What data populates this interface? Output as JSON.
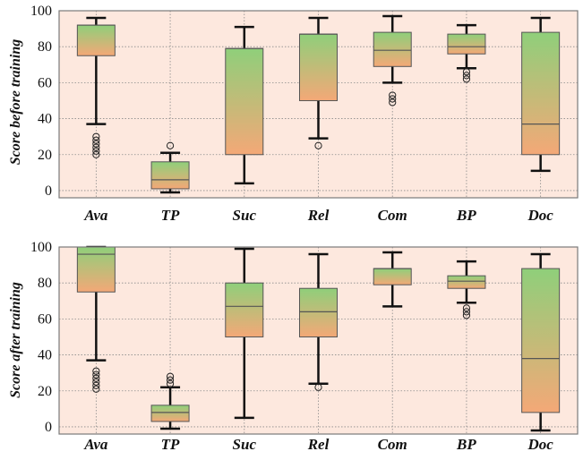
{
  "chart_data": [
    {
      "type": "box",
      "ylabel": "Score before training",
      "ylim": [
        -4,
        100
      ],
      "yticks": [
        0,
        20,
        40,
        60,
        80,
        100
      ],
      "grid": true,
      "colors": {
        "top": "#8fcf7a",
        "bottom": "#f4a877",
        "background": "#fde8de",
        "whisker": "#111111"
      },
      "categories": [
        "Ava",
        "TP",
        "Suc",
        "Rel",
        "Com",
        "BP",
        "Doc"
      ],
      "boxes": [
        {
          "whisker_low": 37,
          "q1": 75,
          "median": 92,
          "q3": 92,
          "whisker_high": 96,
          "outliers": [
            20,
            22,
            24,
            26,
            28,
            30
          ]
        },
        {
          "whisker_low": -1,
          "q1": 1,
          "median": 6,
          "q3": 16,
          "whisker_high": 21,
          "outliers": [
            25
          ]
        },
        {
          "whisker_low": 4,
          "q1": 20,
          "median": 79,
          "q3": 79,
          "whisker_high": 91,
          "outliers": []
        },
        {
          "whisker_low": 29,
          "q1": 50,
          "median": 87,
          "q3": 87,
          "whisker_high": 96,
          "outliers": [
            25
          ]
        },
        {
          "whisker_low": 60,
          "q1": 69,
          "median": 78,
          "q3": 88,
          "whisker_high": 97,
          "outliers": [
            49,
            51,
            53
          ]
        },
        {
          "whisker_low": 68,
          "q1": 76,
          "median": 80,
          "q3": 87,
          "whisker_high": 92,
          "outliers": [
            62,
            64,
            66
          ]
        },
        {
          "whisker_low": 11,
          "q1": 20,
          "median": 37,
          "q3": 88,
          "whisker_high": 96,
          "outliers": []
        }
      ]
    },
    {
      "type": "box",
      "ylabel": "Score after training",
      "ylim": [
        -4,
        100
      ],
      "yticks": [
        0,
        20,
        40,
        60,
        80,
        100
      ],
      "grid": true,
      "colors": {
        "top": "#8fcf7a",
        "bottom": "#f4a877",
        "background": "#fde8de",
        "whisker": "#111111"
      },
      "categories": [
        "Ava",
        "TP",
        "Suc",
        "Rel",
        "Com",
        "BP",
        "Doc"
      ],
      "boxes": [
        {
          "whisker_low": 37,
          "q1": 75,
          "median": 96,
          "q3": 100,
          "whisker_high": 100,
          "outliers": [
            21,
            23,
            25,
            27,
            29,
            31
          ]
        },
        {
          "whisker_low": -1,
          "q1": 3,
          "median": 8,
          "q3": 12,
          "whisker_high": 22,
          "outliers": [
            24,
            26,
            28
          ]
        },
        {
          "whisker_low": 5,
          "q1": 50,
          "median": 67,
          "q3": 80,
          "whisker_high": 99,
          "outliers": []
        },
        {
          "whisker_low": 24,
          "q1": 50,
          "median": 64,
          "q3": 77,
          "whisker_high": 96,
          "outliers": [
            22
          ]
        },
        {
          "whisker_low": 67,
          "q1": 79,
          "median": 88,
          "q3": 88,
          "whisker_high": 97,
          "outliers": []
        },
        {
          "whisker_low": 69,
          "q1": 77,
          "median": 81,
          "q3": 84,
          "whisker_high": 92,
          "outliers": [
            62,
            64,
            66
          ]
        },
        {
          "whisker_low": -2,
          "q1": 8,
          "median": 38,
          "q3": 88,
          "whisker_high": 96,
          "outliers": []
        }
      ]
    }
  ]
}
